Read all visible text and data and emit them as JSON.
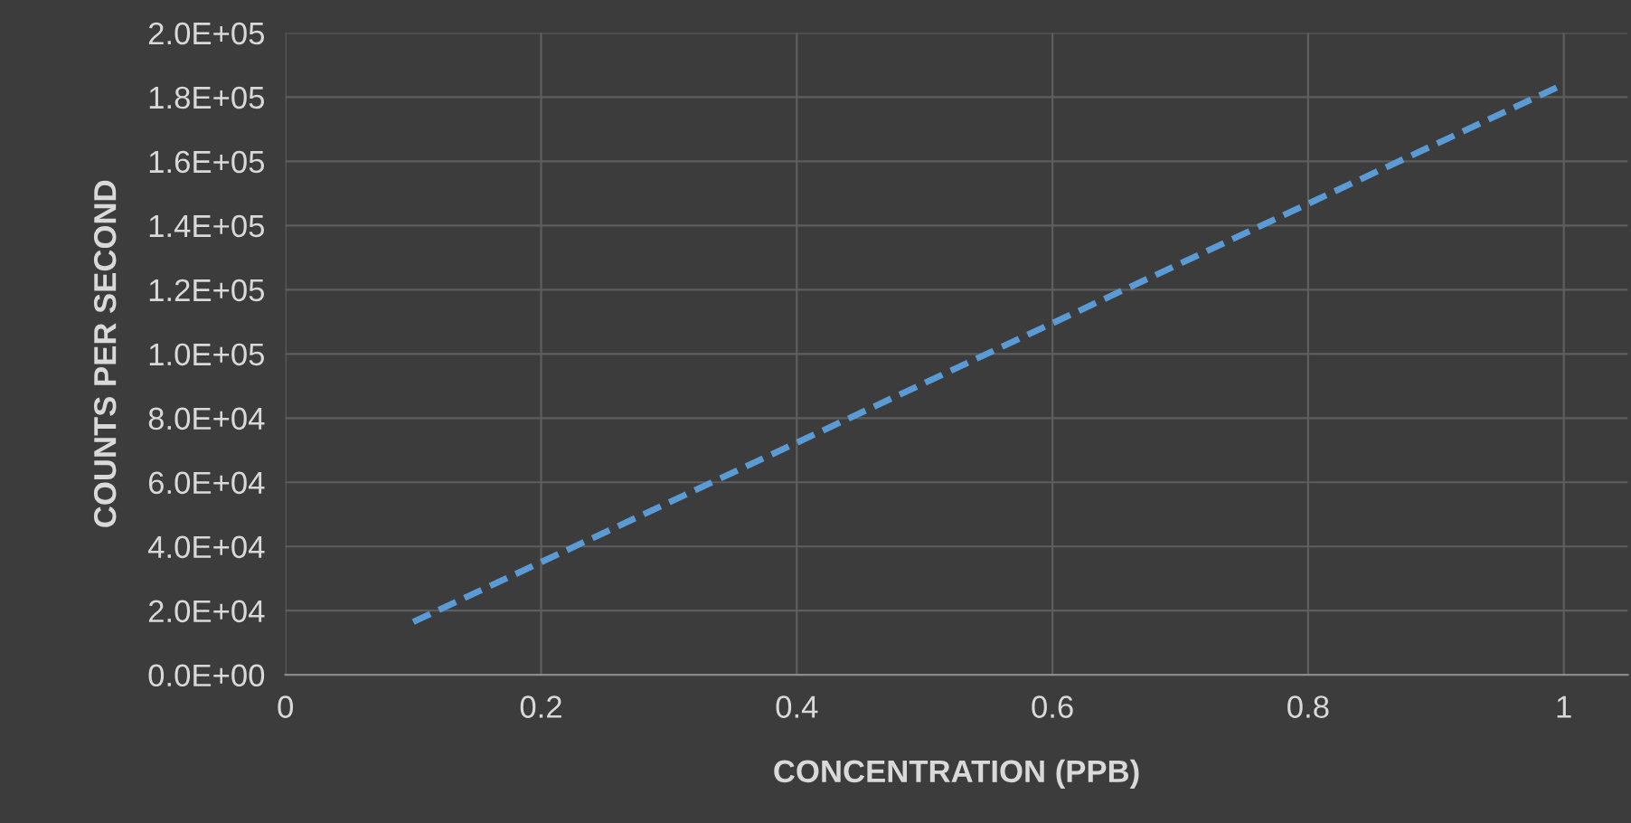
{
  "chart_data": {
    "type": "line",
    "xlabel": "CONCENTRATION (PPB)",
    "ylabel": "COUNTS PER SECOND",
    "series": [
      {
        "color": "#5b9bd5",
        "x": [
          0.1,
          1
        ],
        "values": [
          16500,
          184000
        ]
      }
    ],
    "line_style": "dashed",
    "marker": "none",
    "grid": true,
    "xlim": [
      0,
      1.05
    ],
    "xticks": [
      0,
      0.2,
      0.4,
      0.6,
      0.8,
      1
    ],
    "ylim": [
      0,
      200000
    ],
    "yticks": [
      {
        "value": 0,
        "label": "0.0E+00"
      },
      {
        "value": 20000,
        "label": "2.0E+04"
      },
      {
        "value": 40000,
        "label": "4.0E+04"
      },
      {
        "value": 60000,
        "label": "6.0E+04"
      },
      {
        "value": 80000,
        "label": "8.0E+04"
      },
      {
        "value": 100000,
        "label": "1.0E+05"
      },
      {
        "value": 120000,
        "label": "1.2E+05"
      },
      {
        "value": 140000,
        "label": "1.4E+05"
      },
      {
        "value": 160000,
        "label": "1.6E+05"
      },
      {
        "value": 180000,
        "label": "1.8E+05"
      },
      {
        "value": 200000,
        "label": "2.0E+05"
      }
    ]
  }
}
